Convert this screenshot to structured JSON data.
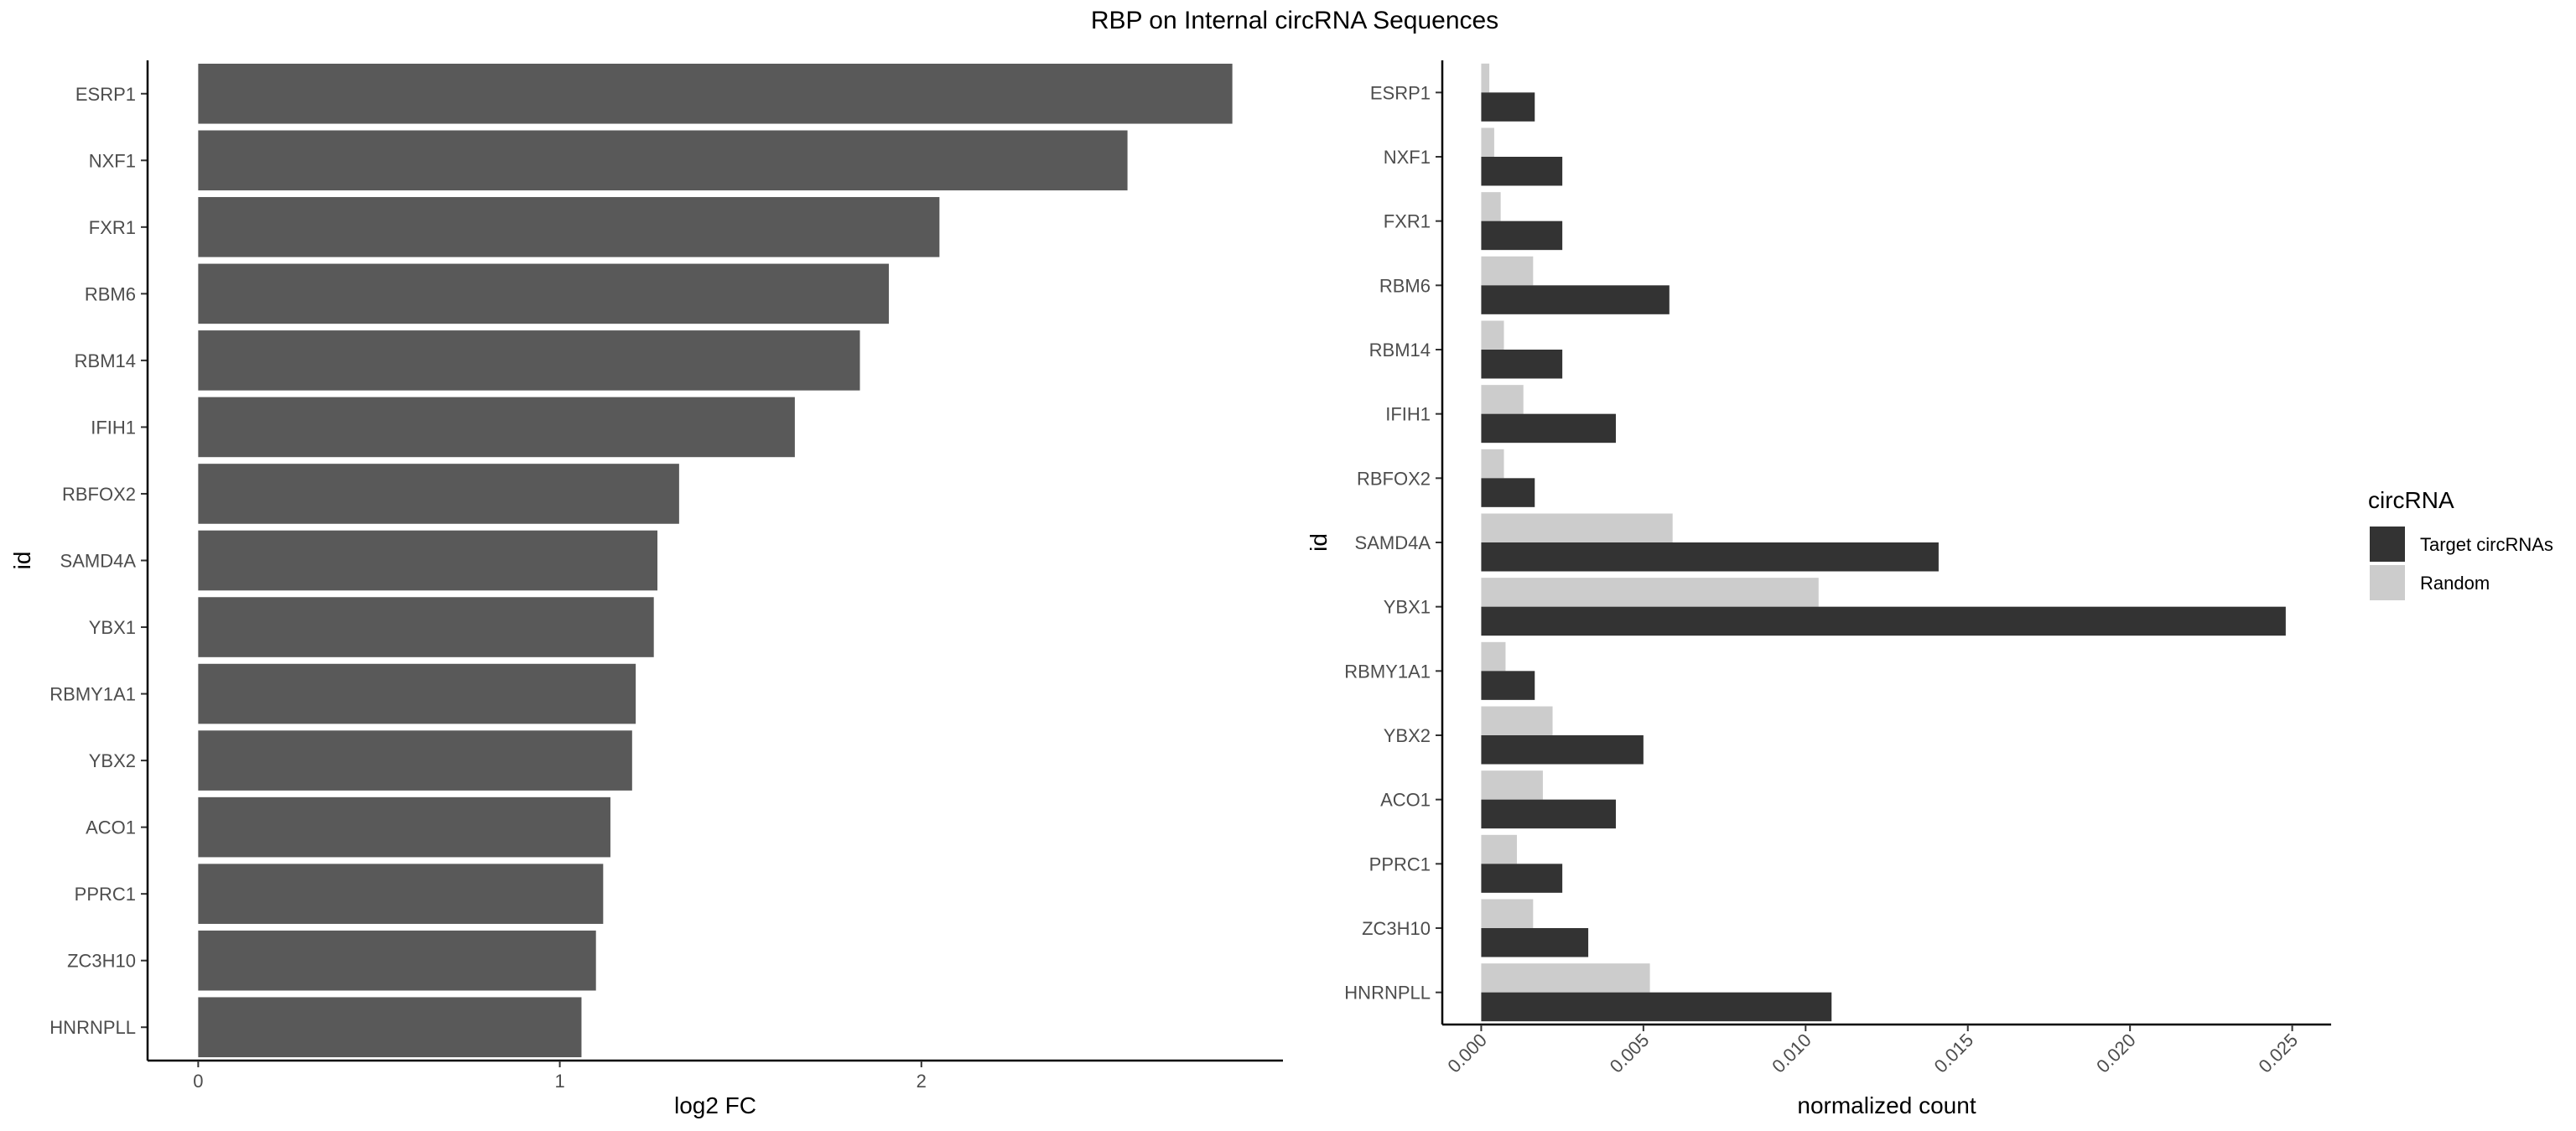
{
  "figure": {
    "title": "RBP on Internal circRNA Sequences"
  },
  "chart_data": [
    {
      "type": "bar",
      "orientation": "horizontal",
      "categories": [
        "ESRP1",
        "NXF1",
        "FXR1",
        "RBM6",
        "RBM14",
        "IFIH1",
        "RBFOX2",
        "SAMD4A",
        "YBX1",
        "RBMY1A1",
        "YBX2",
        "ACO1",
        "PPRC1",
        "ZC3H10",
        "HNRNPLL"
      ],
      "values": [
        2.86,
        2.57,
        2.05,
        1.91,
        1.83,
        1.65,
        1.33,
        1.27,
        1.26,
        1.21,
        1.2,
        1.14,
        1.12,
        1.1,
        1.06
      ],
      "xlabel": "log2 FC",
      "ylabel": "id",
      "xlim": [
        -0.14,
        3.0
      ],
      "xticks": [
        "0",
        "1",
        "2"
      ],
      "xtick_values": [
        0,
        1,
        2
      ],
      "bar_color": "#595959",
      "grid": false
    },
    {
      "type": "bar",
      "orientation": "horizontal",
      "grouped": true,
      "categories": [
        "ESRP1",
        "NXF1",
        "FXR1",
        "RBM6",
        "RBM14",
        "IFIH1",
        "RBFOX2",
        "SAMD4A",
        "YBX1",
        "RBMY1A1",
        "YBX2",
        "ACO1",
        "PPRC1",
        "ZC3H10",
        "HNRNPLL"
      ],
      "series": [
        {
          "name": "Target circRNAs",
          "color": "#333333",
          "values": [
            0.00165,
            0.0025,
            0.0025,
            0.0058,
            0.0025,
            0.00415,
            0.00165,
            0.0141,
            0.0248,
            0.00165,
            0.005,
            0.00415,
            0.0025,
            0.0033,
            0.0108
          ]
        },
        {
          "name": "Random",
          "color": "#cccccc",
          "values": [
            0.00025,
            0.0004,
            0.0006,
            0.0016,
            0.0007,
            0.0013,
            0.0007,
            0.0059,
            0.0104,
            0.00075,
            0.0022,
            0.0019,
            0.0011,
            0.0016,
            0.0052
          ]
        }
      ],
      "xlabel": "normalized count",
      "ylabel": "id",
      "xlim": [
        -0.0012,
        0.0262
      ],
      "xticks": [
        "0.000",
        "0.005",
        "0.010",
        "0.015",
        "0.020",
        "0.025"
      ],
      "xtick_values": [
        0,
        0.005,
        0.01,
        0.015,
        0.02,
        0.025
      ],
      "legend": {
        "title": "circRNA",
        "position": "right"
      },
      "grid": false
    }
  ]
}
